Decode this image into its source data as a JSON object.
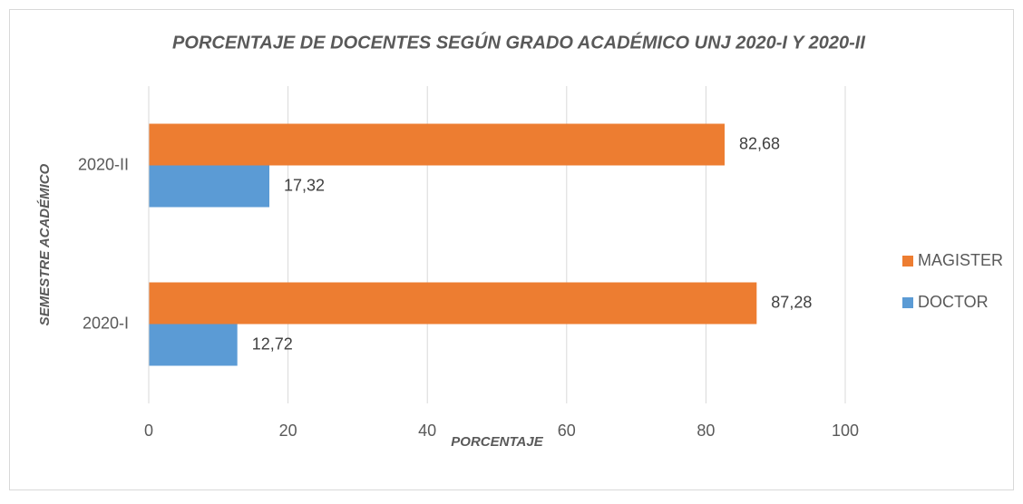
{
  "chart_data": {
    "type": "barh",
    "title": "PORCENTAJE DE DOCENTES SEGÚN GRADO ACADÉMICO UNJ 2020-I Y 2020-II",
    "xlabel": "PORCENTAJE",
    "ylabel": "SEMESTRE ACADÉMICO",
    "categories": [
      "2020-I",
      "2020-II"
    ],
    "series": [
      {
        "name": "DOCTOR",
        "color": "#5b9bd5",
        "values": [
          12.72,
          17.32
        ],
        "value_labels": [
          "12,72",
          "17,32"
        ]
      },
      {
        "name": "MAGISTER",
        "color": "#ed7d31",
        "values": [
          87.28,
          82.68
        ],
        "value_labels": [
          "87,28",
          "82,68"
        ]
      }
    ],
    "xlim": [
      0,
      100
    ],
    "xticks": [
      0,
      20,
      40,
      60,
      80,
      100
    ],
    "grid": true,
    "legend": "right"
  }
}
